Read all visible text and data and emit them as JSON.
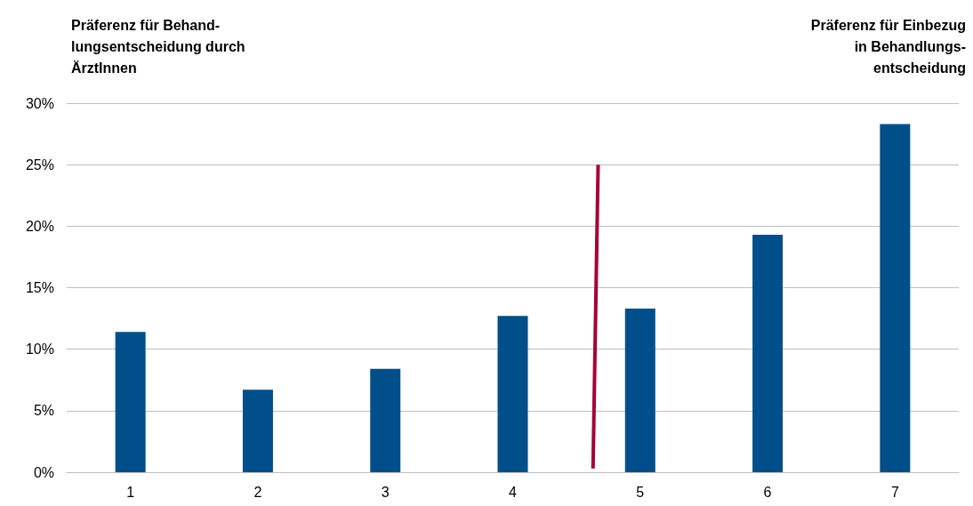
{
  "chart_data": {
    "type": "bar",
    "x": [
      1,
      2,
      3,
      4,
      5,
      6,
      7
    ],
    "xlim": [
      0.5,
      7.5
    ],
    "xticks": [
      1,
      2,
      3,
      4,
      5,
      6,
      7
    ],
    "series": [
      {
        "color": "#004f8a",
        "values": [
          11.4,
          6.7,
          8.4,
          12.7,
          13.3,
          19.3,
          28.3
        ]
      },
      {
        "type": "line",
        "color": "#a50034",
        "x": [
          4.63,
          4.67
        ],
        "values": [
          0.3,
          25
        ]
      }
    ],
    "ylim": [
      0,
      30
    ],
    "yticks": [
      {
        "value": 0,
        "label": "0%"
      },
      {
        "value": 5,
        "label": "5%"
      },
      {
        "value": 10,
        "label": "10%"
      },
      {
        "value": 15,
        "label": "15%"
      },
      {
        "value": 20,
        "label": "20%"
      },
      {
        "value": 25,
        "label": "25%"
      },
      {
        "value": 30,
        "label": "30%"
      }
    ],
    "grid": "y",
    "marker": "none",
    "annotations": [
      "Präferenz für Behand-\nlungsentscheidung durch\nÄrztInnen",
      "Präferenz für Einbezug\nin Behandlungs-\nentscheidung"
    ]
  }
}
